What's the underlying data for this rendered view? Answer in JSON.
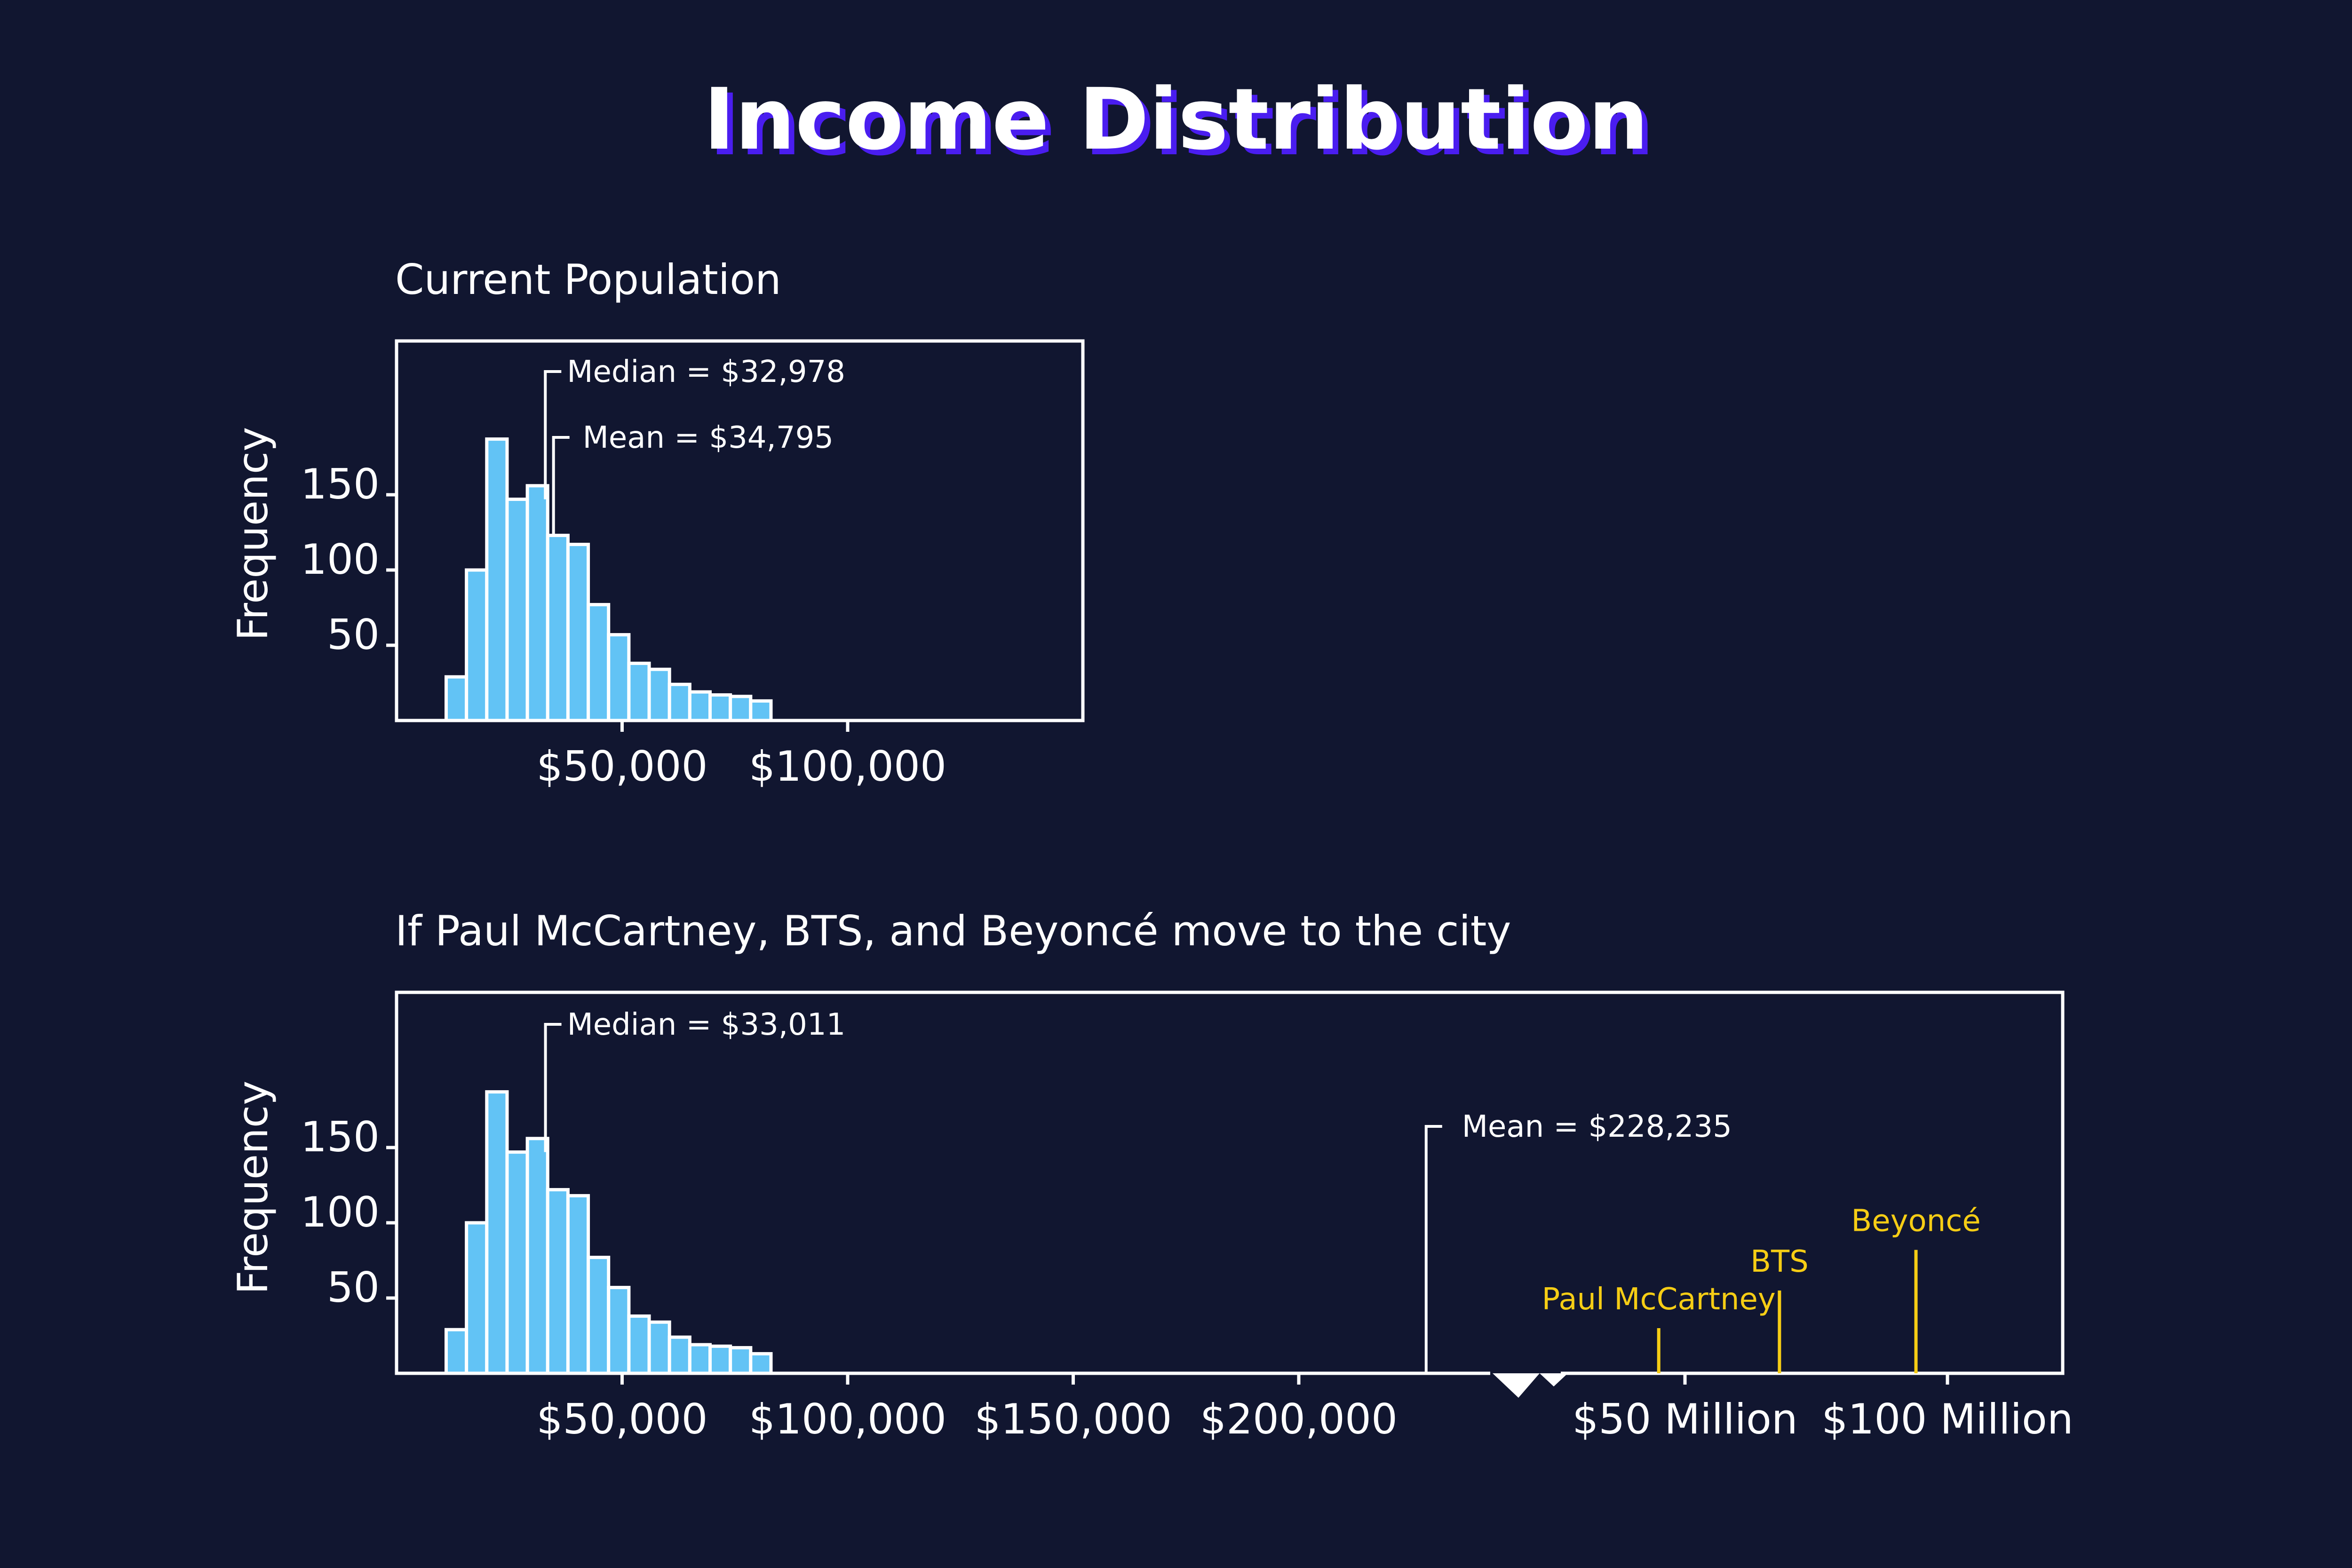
{
  "title": "Income Distribution",
  "colors": {
    "background": "#111630",
    "bar_fill": "#62c3f5",
    "title_shadow": "#4a1df0",
    "celebrity": "#f6cd15",
    "text": "#ffffff"
  },
  "chart_data": [
    {
      "type": "bar",
      "title": "Current Population",
      "ylabel": "Frequency",
      "xlabel": "",
      "x_ticks": [
        {
          "value": 50000,
          "label": "$50,000"
        },
        {
          "value": 100000,
          "label": "$100,000"
        }
      ],
      "y_ticks": [
        {
          "value": 50,
          "label": "50"
        },
        {
          "value": 100,
          "label": "100"
        },
        {
          "value": 150,
          "label": "150"
        }
      ],
      "xlim": [
        0,
        150000
      ],
      "ylim": [
        0,
        200
      ],
      "grid": false,
      "bins": [
        {
          "x0": 11000,
          "x1": 15500,
          "value": 29
        },
        {
          "x0": 15500,
          "x1": 20000,
          "value": 100
        },
        {
          "x0": 20000,
          "x1": 24500,
          "value": 187
        },
        {
          "x0": 24500,
          "x1": 29000,
          "value": 147
        },
        {
          "x0": 29000,
          "x1": 33500,
          "value": 156
        },
        {
          "x0": 33500,
          "x1": 38000,
          "value": 123
        },
        {
          "x0": 38000,
          "x1": 42500,
          "value": 117
        },
        {
          "x0": 42500,
          "x1": 47000,
          "value": 77
        },
        {
          "x0": 47000,
          "x1": 51500,
          "value": 57
        },
        {
          "x0": 51500,
          "x1": 56000,
          "value": 38
        },
        {
          "x0": 56000,
          "x1": 60500,
          "value": 34
        },
        {
          "x0": 60500,
          "x1": 65000,
          "value": 24
        },
        {
          "x0": 65000,
          "x1": 69500,
          "value": 19
        },
        {
          "x0": 69500,
          "x1": 74000,
          "value": 17
        },
        {
          "x0": 74000,
          "x1": 78500,
          "value": 16
        },
        {
          "x0": 78500,
          "x1": 83000,
          "value": 13
        }
      ],
      "annotations": [
        {
          "label": "Median = $32,978",
          "value": 32978,
          "height": 185
        },
        {
          "label": "Mean = $34,795",
          "value": 34795,
          "height": 150
        }
      ]
    },
    {
      "type": "bar",
      "title": "If Paul McCartney, BTS, and Beyoncé move to the city",
      "ylabel": "Frequency",
      "xlabel": "",
      "x_ticks": [
        {
          "value": 50000,
          "label": "$50,000"
        },
        {
          "value": 100000,
          "label": "$100,000"
        },
        {
          "value": 150000,
          "label": "$150,000"
        },
        {
          "value": 200000,
          "label": "$200,000"
        },
        {
          "value": 50000000,
          "label": "$50 Million"
        },
        {
          "value": 100000000,
          "label": "$100 Million"
        }
      ],
      "y_ticks": [
        {
          "value": 50,
          "label": "50"
        },
        {
          "value": 100,
          "label": "100"
        },
        {
          "value": 150,
          "label": "150"
        }
      ],
      "xlim": [
        0,
        120000000
      ],
      "x_axis_break": [
        230000,
        30000000
      ],
      "ylim": [
        0,
        200
      ],
      "grid": false,
      "bins": [
        {
          "x0": 11000,
          "x1": 15500,
          "value": 29
        },
        {
          "x0": 15500,
          "x1": 20000,
          "value": 100
        },
        {
          "x0": 20000,
          "x1": 24500,
          "value": 187
        },
        {
          "x0": 24500,
          "x1": 29000,
          "value": 147
        },
        {
          "x0": 29000,
          "x1": 33500,
          "value": 156
        },
        {
          "x0": 33500,
          "x1": 38000,
          "value": 122
        },
        {
          "x0": 38000,
          "x1": 42500,
          "value": 118
        },
        {
          "x0": 42500,
          "x1": 47000,
          "value": 77
        },
        {
          "x0": 47000,
          "x1": 51500,
          "value": 57
        },
        {
          "x0": 51500,
          "x1": 56000,
          "value": 38
        },
        {
          "x0": 56000,
          "x1": 60500,
          "value": 34
        },
        {
          "x0": 60500,
          "x1": 65000,
          "value": 24
        },
        {
          "x0": 65000,
          "x1": 69500,
          "value": 19
        },
        {
          "x0": 69500,
          "x1": 74000,
          "value": 18
        },
        {
          "x0": 74000,
          "x1": 78500,
          "value": 17
        },
        {
          "x0": 78500,
          "x1": 83000,
          "value": 13
        }
      ],
      "annotations": [
        {
          "label": "Median = $33,011",
          "value": 33011,
          "height": 185
        },
        {
          "label": "Mean = $228,235",
          "value": 228235,
          "height": 130
        }
      ],
      "celebrities": [
        {
          "name": "Paul McCartney",
          "income": 45000000,
          "height": 30
        },
        {
          "name": "BTS",
          "income": 68000000,
          "height": 55
        },
        {
          "name": "Beyoncé",
          "income": 94000000,
          "height": 82
        }
      ]
    }
  ]
}
